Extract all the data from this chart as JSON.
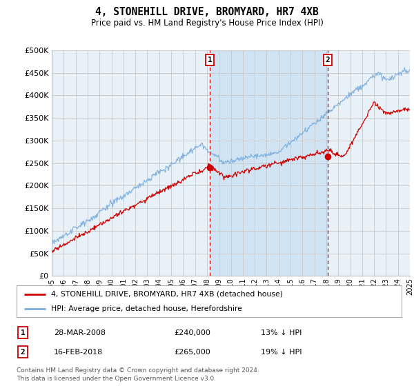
{
  "title": "4, STONEHILL DRIVE, BROMYARD, HR7 4XB",
  "subtitle": "Price paid vs. HM Land Registry's House Price Index (HPI)",
  "property_label": "4, STONEHILL DRIVE, BROMYARD, HR7 4XB (detached house)",
  "hpi_label": "HPI: Average price, detached house, Herefordshire",
  "sale1_date": "28-MAR-2008",
  "sale1_price": "£240,000",
  "sale1_hpi": "13% ↓ HPI",
  "sale2_date": "16-FEB-2018",
  "sale2_price": "£265,000",
  "sale2_hpi": "19% ↓ HPI",
  "footer": "Contains HM Land Registry data © Crown copyright and database right 2024.\nThis data is licensed under the Open Government Licence v3.0.",
  "property_color": "#cc0000",
  "hpi_color": "#7aaddc",
  "sale_marker_color": "#cc0000",
  "chart_bg": "#e8f0f8",
  "shade_bg": "#d0e4f4",
  "grid_color": "#c8c8c8",
  "ylim": [
    0,
    500000
  ],
  "yticks": [
    0,
    50000,
    100000,
    150000,
    200000,
    250000,
    300000,
    350000,
    400000,
    450000,
    500000
  ],
  "vline1_x": 2008.23,
  "vline2_x": 2018.12,
  "sale1_marker_x": 2008.23,
  "sale1_marker_y": 240000,
  "sale2_marker_x": 2018.12,
  "sale2_marker_y": 265000,
  "xmin": 1995,
  "xmax": 2025
}
